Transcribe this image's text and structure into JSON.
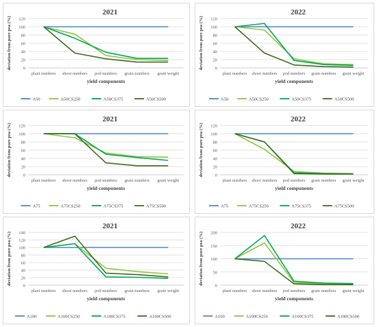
{
  "colors": {
    "pure": "#4A86C8",
    "cs250": "#8DC63F",
    "cs375": "#00A651",
    "cs500": "#3E6B1F",
    "grid": "#d9d9d9",
    "axis": "#bfbfbf"
  },
  "chart_data": [
    {
      "type": "line",
      "title": "2021",
      "xlabel": "yield components",
      "ylabel": "deviation from pure pea (%)",
      "categories": [
        "plant numbers",
        "shoot numbers",
        "pod numbers",
        "grain numbers",
        "grain weight"
      ],
      "ylim": [
        0,
        120
      ],
      "yticks": [
        0,
        20,
        40,
        60,
        80,
        100,
        120
      ],
      "legend_position": "bottom",
      "grid": true,
      "series": [
        {
          "name": "A50",
          "values": [
            100,
            100,
            100,
            100,
            100
          ]
        },
        {
          "name": "A50CS250",
          "values": [
            100,
            82,
            30,
            20,
            18
          ]
        },
        {
          "name": "A50CS375",
          "values": [
            100,
            72,
            38,
            23,
            23
          ]
        },
        {
          "name": "A50CS500",
          "values": [
            100,
            36,
            22,
            14,
            14
          ]
        }
      ]
    },
    {
      "type": "line",
      "title": "2022",
      "xlabel": "yield components",
      "ylabel": "deviation from pure pea (%)",
      "categories": [
        "plant numbers",
        "shoot numbers",
        "pod numbers",
        "grain numbers",
        "grain weight"
      ],
      "ylim": [
        0,
        120
      ],
      "yticks": [
        0,
        20,
        40,
        60,
        80,
        100,
        120
      ],
      "legend_position": "bottom",
      "grid": true,
      "series": [
        {
          "name": "A50",
          "values": [
            100,
            100,
            100,
            100,
            100
          ]
        },
        {
          "name": "A50CS250",
          "values": [
            100,
            92,
            22,
            10,
            8
          ]
        },
        {
          "name": "A50CS375",
          "values": [
            100,
            108,
            18,
            8,
            6
          ]
        },
        {
          "name": "A50CS500",
          "values": [
            100,
            36,
            7,
            3,
            2
          ]
        }
      ]
    },
    {
      "type": "line",
      "title": "2021",
      "xlabel": "yield components",
      "ylabel": "deviation from pure pea (%)",
      "categories": [
        "plant numbers",
        "shoot numbers",
        "pod numbers",
        "grain numbers",
        "grain weight"
      ],
      "ylim": [
        0,
        120
      ],
      "yticks": [
        0,
        20,
        40,
        60,
        80,
        100,
        120
      ],
      "legend_position": "bottom",
      "grid": true,
      "series": [
        {
          "name": "A75",
          "values": [
            100,
            100,
            100,
            100,
            100
          ]
        },
        {
          "name": "A75CS250",
          "values": [
            100,
            90,
            53,
            44,
            43
          ]
        },
        {
          "name": "A75CS375",
          "values": [
            100,
            100,
            50,
            42,
            35
          ]
        },
        {
          "name": "A75CS500",
          "values": [
            100,
            100,
            29,
            22,
            22
          ]
        }
      ]
    },
    {
      "type": "line",
      "title": "2022",
      "xlabel": "yield components",
      "ylabel": "deviation from pure pea (%)",
      "categories": [
        "plant numbers",
        "shoot numbers",
        "pod numbers",
        "grain numbers",
        "grain weight"
      ],
      "ylim": [
        0,
        120
      ],
      "yticks": [
        0,
        20,
        40,
        60,
        80,
        100,
        120
      ],
      "legend_position": "bottom",
      "grid": true,
      "series": [
        {
          "name": "A75",
          "values": [
            100,
            100,
            100,
            100,
            100
          ]
        },
        {
          "name": "A75CS250",
          "values": [
            100,
            62,
            8,
            4,
            3
          ]
        },
        {
          "name": "A75CS375",
          "values": [
            100,
            80,
            5,
            3,
            2
          ]
        },
        {
          "name": "A75CS500",
          "values": [
            100,
            80,
            3,
            2,
            2
          ]
        }
      ]
    },
    {
      "type": "line",
      "title": "2021",
      "xlabel": "yield components",
      "ylabel": "deviation from pure pea (%)",
      "categories": [
        "plant numbers",
        "shoot numbers",
        "pod numbers",
        "grain numbers",
        "grain weight"
      ],
      "ylim": [
        0,
        140
      ],
      "yticks": [
        0,
        20,
        40,
        60,
        80,
        100,
        120,
        140
      ],
      "legend_position": "bottom",
      "grid": true,
      "series": [
        {
          "name": "A100",
          "values": [
            100,
            100,
            100,
            100,
            100
          ]
        },
        {
          "name": "A100CS250",
          "values": [
            100,
            110,
            45,
            36,
            30
          ]
        },
        {
          "name": "A100CS375",
          "values": [
            100,
            110,
            22,
            21,
            18
          ]
        },
        {
          "name": "A100CS500",
          "values": [
            100,
            130,
            32,
            28,
            22
          ]
        }
      ]
    },
    {
      "type": "line",
      "title": "2022",
      "xlabel": "yield components",
      "ylabel": "deviation from pure pea (%)",
      "categories": [
        "plant numbers",
        "shoot numbers",
        "pod numbers",
        "grain numbers",
        "grain weight"
      ],
      "ylim": [
        0,
        200
      ],
      "yticks": [
        0,
        50,
        100,
        150,
        200
      ],
      "legend_position": "bottom",
      "grid": true,
      "series": [
        {
          "name": "A100",
          "values": [
            100,
            100,
            100,
            100,
            100
          ]
        },
        {
          "name": "A100CS250",
          "values": [
            100,
            160,
            10,
            5,
            4
          ]
        },
        {
          "name": "A100CS375",
          "values": [
            100,
            188,
            15,
            8,
            6
          ]
        },
        {
          "name": "A100CS500",
          "values": [
            100,
            90,
            5,
            2,
            2
          ]
        }
      ]
    }
  ]
}
